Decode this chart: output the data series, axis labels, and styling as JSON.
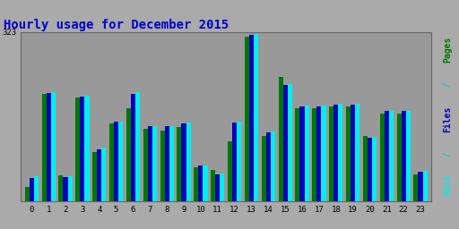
{
  "title": "Hourly usage for December 2015",
  "xlabel_ticks": [
    0,
    1,
    2,
    3,
    4,
    5,
    6,
    7,
    8,
    9,
    10,
    11,
    12,
    13,
    14,
    15,
    16,
    17,
    18,
    19,
    20,
    21,
    22,
    23
  ],
  "ymax": 323,
  "ytick_label": "323",
  "pages": [
    28,
    205,
    50,
    198,
    95,
    148,
    178,
    138,
    135,
    142,
    65,
    60,
    115,
    315,
    125,
    238,
    178,
    178,
    182,
    182,
    125,
    168,
    168,
    52
  ],
  "files": [
    45,
    207,
    47,
    200,
    100,
    152,
    205,
    143,
    143,
    148,
    68,
    52,
    150,
    318,
    132,
    222,
    182,
    182,
    185,
    185,
    122,
    172,
    172,
    57
  ],
  "hits": [
    48,
    208,
    48,
    202,
    102,
    153,
    208,
    144,
    144,
    150,
    69,
    53,
    152,
    320,
    133,
    224,
    183,
    183,
    186,
    186,
    123,
    173,
    173,
    58
  ],
  "color_pages": "#007700",
  "color_files": "#0000BB",
  "color_hits": "#00EEEE",
  "bg_color": "#aaaaaa",
  "plot_bg": "#999999",
  "title_color": "#0000cc",
  "bar_width": 0.27,
  "figsize": [
    5.12,
    2.56
  ],
  "dpi": 100
}
